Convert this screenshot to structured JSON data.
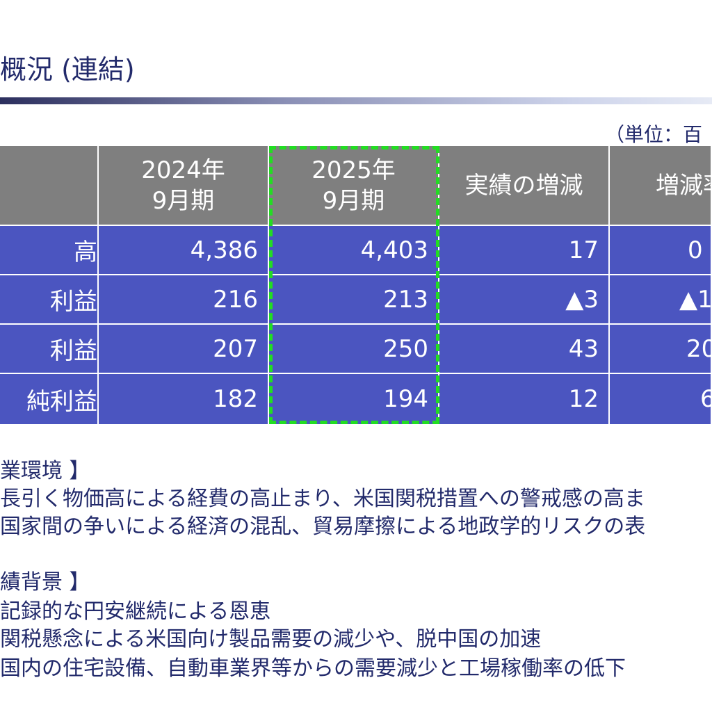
{
  "header": {
    "title": "概況 (連結)",
    "unit": "（単位：百"
  },
  "table": {
    "columns": [
      "",
      "2024年\n9月期",
      "2025年\n9月期",
      "実績の増減",
      "増減率"
    ],
    "col_line1": [
      "",
      "2024年",
      "2025年",
      "実績の増減",
      "増減率"
    ],
    "col_line2": [
      "",
      "9月期",
      "9月期",
      "",
      ""
    ],
    "rows": [
      {
        "label": "高",
        "v2024": "4,386",
        "v2025": "4,403",
        "diff": "17",
        "rate": "0"
      },
      {
        "label": "利益",
        "v2024": "216",
        "v2025": "213",
        "diff": "▲3",
        "rate": "▲1"
      },
      {
        "label": "利益",
        "v2024": "207",
        "v2025": "250",
        "diff": "43",
        "rate": "20"
      },
      {
        "label": "純利益",
        "v2024": "182",
        "v2025": "194",
        "diff": "12",
        "rate": "6"
      }
    ]
  },
  "environment": {
    "heading": "業環境 】",
    "lines": [
      "長引く物価高による経費の高止まり、米国関税措置への警戒感の高ま",
      "国家間の争いによる経済の混乱、貿易摩擦による地政学的リスクの表"
    ]
  },
  "background": {
    "heading": "績背景 】",
    "lines": [
      "記録的な円安継続による恩恵",
      "関税懸念による米国向け製品需要の減少や、脱中国の加速",
      "国内の住宅設備、自動車業界等からの需要減少と工場稼働率の低下"
    ]
  },
  "colors": {
    "header_bg": "#7f7f7f",
    "body_bg": "#4b55c0",
    "highlight": "#22dd22",
    "title_text": "#222a6b"
  }
}
